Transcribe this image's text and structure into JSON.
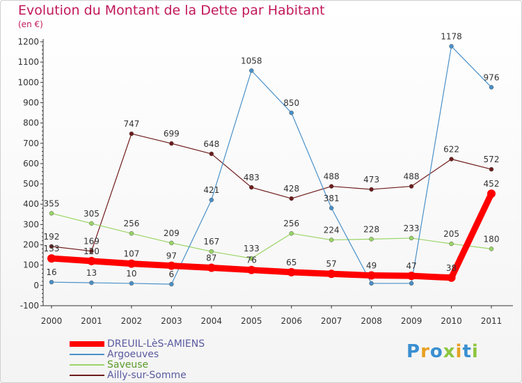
{
  "title": "Evolution du Montant de la Dette par Habitant",
  "subtitle": "(en €)",
  "logo": "Proxiti",
  "colors": {
    "title": "#c1185b",
    "logo_letters": [
      "#3a8fd1",
      "#e8a021",
      "#3a8fd1",
      "#8cc63f",
      "#e8a021",
      "#3a8fd1",
      "#8cc63f"
    ]
  },
  "chart_data": {
    "type": "line",
    "title": "Evolution du Montant de la Dette par Habitant",
    "ylabel": "(en €)",
    "x": [
      "2000",
      "2001",
      "2002",
      "2003",
      "2004",
      "2005",
      "2006",
      "2007",
      "2008",
      "2009",
      "2010",
      "2011"
    ],
    "ylim": [
      -100,
      1200
    ],
    "yticks": [
      "-100",
      "0",
      "100",
      "200",
      "300",
      "400",
      "500",
      "600",
      "700",
      "800",
      "900",
      "1000",
      "1100",
      "1200"
    ],
    "grid": false,
    "legend_position": "bottom-left",
    "series": [
      {
        "name": "DREUIL-LèS-AMIENS",
        "color": "#ff0000",
        "values": [
          133,
          120,
          107,
          97,
          87,
          76,
          65,
          57,
          49,
          47,
          38,
          452
        ],
        "labels": [
          "133",
          "120",
          "107",
          "97",
          "87",
          "76",
          "65",
          "57",
          "49",
          "47",
          "38",
          "452"
        ]
      },
      {
        "name": "Argoeuves",
        "color": "#4a90c8",
        "values": [
          16,
          13,
          10,
          6,
          421,
          1058,
          850,
          381,
          10,
          10,
          1178,
          976
        ],
        "labels": [
          "16",
          "13",
          "10",
          "6",
          "421",
          "1058",
          "850",
          "381",
          "",
          "",
          "1178",
          "976"
        ]
      },
      {
        "name": "Saveuse",
        "color": "#99d566",
        "values": [
          355,
          305,
          256,
          209,
          167,
          133,
          256,
          224,
          228,
          233,
          205,
          180
        ],
        "labels": [
          "355",
          "305",
          "256",
          "209",
          "167",
          "133",
          "256",
          "224",
          "228",
          "233",
          "205",
          "180"
        ]
      },
      {
        "name": "Ailly-sur-Somme",
        "color": "#6e1b1b",
        "values": [
          192,
          169,
          747,
          699,
          648,
          483,
          428,
          488,
          473,
          488,
          622,
          572
        ],
        "labels": [
          "192",
          "169",
          "747",
          "699",
          "648",
          "483",
          "428",
          "488",
          "473",
          "488",
          "622",
          "572"
        ]
      }
    ]
  }
}
